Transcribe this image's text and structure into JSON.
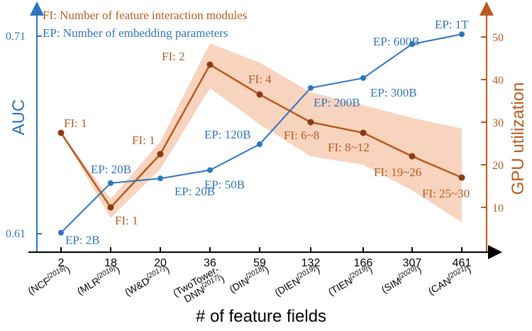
{
  "chart_data": {
    "type": "line",
    "xlabel": "# of feature fields",
    "ylabel_left": "AUC",
    "ylabel_right": "GPU utilization",
    "categories": [
      "2",
      "18",
      "20",
      "36",
      "59",
      "132",
      "166",
      "307",
      "461"
    ],
    "category_models": [
      {
        "model": "(NCF",
        "year": "[2016]",
        "close": ")"
      },
      {
        "model": "(MLR",
        "year": "[2016]",
        "close": ")"
      },
      {
        "model": "(W&D",
        "year": "[2017]",
        "close": ")"
      },
      {
        "model": "(TwoTower-",
        "model2": "DNN",
        "year": "[2017]",
        "close": ")"
      },
      {
        "model": "(DIN",
        "year": "[2018]",
        "close": ")"
      },
      {
        "model": "(DIEN",
        "year": "[2019]",
        "close": ")"
      },
      {
        "model": "(TIEN",
        "year": "[2019]",
        "close": ")"
      },
      {
        "model": "(SIM",
        "year": "[2020]",
        "close": ")"
      },
      {
        "model": "(CAN",
        "year": "[2021]",
        "close": ")"
      }
    ],
    "left_axis": {
      "ylim": [
        0.61,
        0.71
      ],
      "ticks": [
        "0.61",
        "0.71"
      ],
      "color": "#2e74c0"
    },
    "right_axis": {
      "ylim": [
        0,
        55
      ],
      "ticks": [
        10,
        20,
        30,
        40,
        50
      ],
      "color": "#b85a1e"
    },
    "legend": {
      "position": "top-left",
      "items": [
        {
          "text": "FI: Number of feature interaction modules",
          "color": "#b85a1e"
        },
        {
          "text": "EP: Number of embedding parameters",
          "color": "#2e74c0"
        }
      ]
    },
    "series": [
      {
        "axis": "left",
        "color": "#2e74c0",
        "values": [
          0.6105,
          0.6356,
          0.638,
          0.6422,
          0.6553,
          0.6838,
          0.6888,
          0.706,
          0.711
        ],
        "labels": [
          "EP: 2B",
          "EP: 20B",
          "EP: 20B",
          "EP: 50B",
          "EP: 120B",
          "EP: 200B",
          "EP: 300B",
          "EP: 600B",
          "EP: 1T"
        ]
      },
      {
        "axis": "right",
        "color": "#b85a1e",
        "band_color": "#f8d4be",
        "values": [
          27.5,
          10.0,
          22.5,
          43.5,
          36.5,
          30.0,
          27.5,
          22.0,
          17.0
        ],
        "band_lower": [
          27.5,
          7.5,
          19.0,
          38.0,
          29.5,
          22.0,
          20.0,
          14.0,
          6.5
        ],
        "band_upper": [
          27.5,
          12.0,
          25.5,
          48.5,
          44.0,
          37.0,
          34.0,
          31.0,
          28.5
        ],
        "labels": [
          "FI: 1",
          "FI: 1",
          "FI: 1",
          "FI: 2",
          "FI: 4",
          "FI: 6~8",
          "FI: 8~12",
          "FI: 19~26",
          "FI: 25~30"
        ]
      }
    ]
  }
}
